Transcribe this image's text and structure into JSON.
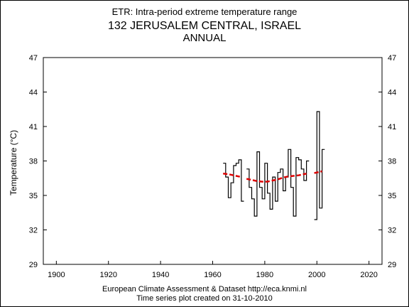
{
  "header": {
    "subtitle": "ETR: Intra-period extreme temperature range",
    "station": "132 JERUSALEM CENTRAL, ISRAEL",
    "period": "ANNUAL"
  },
  "footer": {
    "line1": "European Climate Assessment & Dataset  http://eca.knmi.nl",
    "line2": "Time series plot created on 31-10-2010"
  },
  "chart_data": {
    "type": "line",
    "title": "132 JERUSALEM CENTRAL, ISRAEL",
    "subtitle": "ETR: Intra-period extreme temperature range",
    "ylabel": "Temperature (°C)",
    "xlabel": "",
    "xlim": [
      1895,
      2025
    ],
    "ylim": [
      29,
      47
    ],
    "xticks": [
      1900,
      1920,
      1940,
      1960,
      1980,
      2000,
      2020
    ],
    "yticks": [
      29,
      32,
      35,
      38,
      41,
      44,
      47
    ],
    "grid": false,
    "colors": {
      "annual": "#000000",
      "trend": "#dd0000"
    },
    "series": [
      {
        "style": "step",
        "color": "#000000",
        "segments": [
          [
            [
              1964,
              37.8
            ],
            [
              1965,
              36.6
            ],
            [
              1966,
              34.8
            ],
            [
              1967,
              36.1
            ],
            [
              1968,
              37.6
            ],
            [
              1969,
              37.8
            ],
            [
              1970,
              38.1
            ],
            [
              1971,
              34.5
            ]
          ],
          [
            [
              1973,
              37.3
            ],
            [
              1974,
              35.7
            ],
            [
              1975,
              34.7
            ],
            [
              1976,
              33.2
            ],
            [
              1977,
              38.8
            ],
            [
              1978,
              35.7
            ],
            [
              1979,
              34.7
            ],
            [
              1980,
              37.8
            ],
            [
              1981,
              35.2
            ],
            [
              1982,
              33.8
            ],
            [
              1983,
              36.6
            ],
            [
              1984,
              34.5
            ],
            [
              1985,
              37.0
            ],
            [
              1986,
              37.3
            ],
            [
              1987,
              35.4
            ],
            [
              1988,
              36.6
            ],
            [
              1989,
              39.0
            ],
            [
              1990,
              35.7
            ],
            [
              1991,
              33.2
            ],
            [
              1992,
              38.3
            ],
            [
              1993,
              38.1
            ],
            [
              1994,
              37.3
            ],
            [
              1995,
              36.3
            ],
            [
              1996,
              38.0
            ]
          ],
          [
            [
              1999,
              32.9
            ],
            [
              2000,
              42.3
            ],
            [
              2001,
              33.9
            ],
            [
              2002,
              39.0
            ]
          ]
        ]
      },
      {
        "style": "dashed",
        "color": "#dd0000",
        "segments": [
          [
            [
              1964,
              36.9
            ],
            [
              1966,
              36.85
            ],
            [
              1968,
              36.75
            ],
            [
              1970,
              36.65
            ],
            [
              1971,
              36.6
            ]
          ],
          [
            [
              1973,
              36.45
            ],
            [
              1975,
              36.35
            ],
            [
              1977,
              36.25
            ],
            [
              1979,
              36.2
            ],
            [
              1981,
              36.2
            ],
            [
              1983,
              36.3
            ],
            [
              1985,
              36.4
            ],
            [
              1987,
              36.55
            ],
            [
              1989,
              36.65
            ],
            [
              1991,
              36.7
            ],
            [
              1993,
              36.75
            ],
            [
              1995,
              36.85
            ],
            [
              1996,
              36.9
            ]
          ],
          [
            [
              1999,
              36.95
            ],
            [
              2000,
              37.0
            ],
            [
              2001,
              37.05
            ],
            [
              2002,
              37.1
            ]
          ]
        ]
      }
    ]
  }
}
